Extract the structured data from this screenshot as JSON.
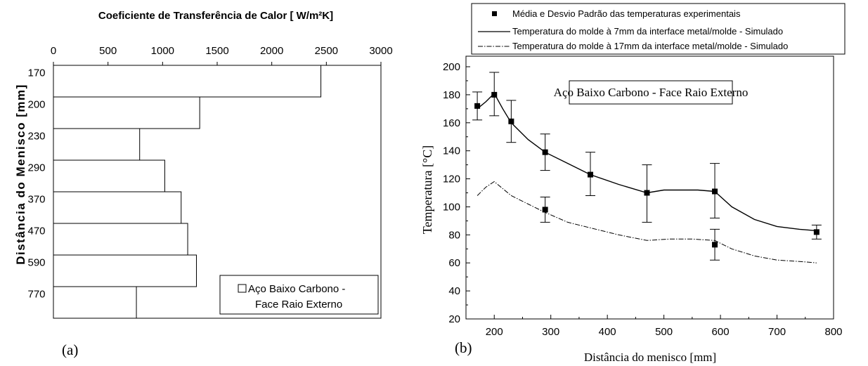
{
  "chart_data": [
    {
      "type": "bar",
      "orientation": "horizontal",
      "title": "Coeficiente de Transferência de Calor [ W/m²K]",
      "ylabel": "Distância do Menisco [mm]",
      "xlim": [
        0,
        3000
      ],
      "x_ticks": [
        "0",
        "500",
        "1000",
        "1500",
        "2000",
        "2500",
        "3000"
      ],
      "x_tick_values": [
        0,
        500,
        1000,
        1500,
        2000,
        2500,
        3000
      ],
      "categories": [
        "170",
        "200",
        "230",
        "290",
        "370",
        "470",
        "590",
        "770"
      ],
      "values": [
        2450,
        1340,
        790,
        1020,
        1170,
        1230,
        1310,
        760
      ],
      "legend": "Aço Baixo Carbono - Face Raio Externo",
      "legend_lines": [
        "Aço Baixo Carbono -",
        "Face Raio Externo"
      ],
      "legend_position": "bottom-right",
      "panel_label": "(a)"
    },
    {
      "type": "line",
      "annotation": "Aço Baixo Carbono - Face Raio Externo",
      "xlabel": "Distância do menisco [mm]",
      "ylabel": "Temperatura [°C]",
      "xlim": [
        150,
        800
      ],
      "ylim": [
        20,
        200
      ],
      "x_ticks": [
        200,
        300,
        400,
        500,
        600,
        700,
        800
      ],
      "y_ticks": [
        20,
        40,
        60,
        80,
        100,
        120,
        140,
        160,
        180,
        200
      ],
      "legend_position": "top",
      "panel_label": "(b)",
      "series": [
        {
          "name": "Média e Desvio Padrão das temperaturas experimentais",
          "style": "square-markers-errorbars",
          "points": [
            {
              "x": 170,
              "y": 172,
              "err_low": 162,
              "err_high": 182
            },
            {
              "x": 200,
              "y": 180,
              "err_low": 165,
              "err_high": 196
            },
            {
              "x": 230,
              "y": 161,
              "err_low": 146,
              "err_high": 176
            },
            {
              "x": 290,
              "y": 139,
              "err_low": 126,
              "err_high": 152
            },
            {
              "x": 370,
              "y": 123,
              "err_low": 108,
              "err_high": 139
            },
            {
              "x": 470,
              "y": 110,
              "err_low": 89,
              "err_high": 130
            },
            {
              "x": 590,
              "y": 111,
              "err_low": 92,
              "err_high": 131
            },
            {
              "x": 770,
              "y": 82,
              "err_low": 77,
              "err_high": 87
            },
            {
              "x": 290,
              "y": 98,
              "err_low": 89,
              "err_high": 107
            },
            {
              "x": 590,
              "y": 73,
              "err_low": 62,
              "err_high": 84
            }
          ]
        },
        {
          "name": "Temperatura do molde à 7mm da interface metal/molde - Simulado",
          "style": "solid",
          "x": [
            170,
            185,
            200,
            215,
            230,
            260,
            290,
            330,
            370,
            420,
            470,
            500,
            530,
            560,
            590,
            620,
            660,
            700,
            740,
            770
          ],
          "y": [
            170,
            175,
            181,
            170,
            160,
            148,
            139,
            131,
            123,
            116,
            110,
            112,
            112,
            112,
            111,
            100,
            91,
            86,
            84,
            83
          ]
        },
        {
          "name": "Temperatura do molde à 17mm da interface metal/molde - Simulado",
          "style": "dash-dot",
          "x": [
            170,
            185,
            200,
            215,
            230,
            260,
            290,
            330,
            370,
            420,
            470,
            510,
            550,
            590,
            620,
            660,
            700,
            740,
            770
          ],
          "y": [
            108,
            114,
            118,
            113,
            108,
            102,
            96,
            89,
            85,
            80,
            76,
            77,
            77,
            76,
            70,
            65,
            62,
            61,
            60
          ]
        }
      ]
    }
  ]
}
